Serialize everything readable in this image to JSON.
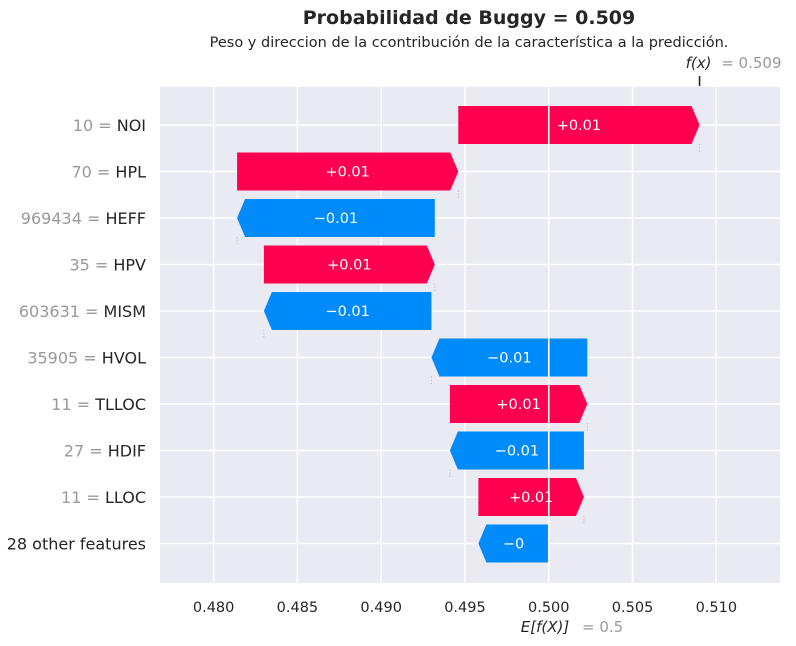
{
  "chart_data": {
    "type": "bar",
    "title": "Probabilidad de Buggy = 0.509",
    "subtitle": "Peso y direccion de la ccontribución de la característica a la predicción.",
    "base_value": 0.5,
    "base_value_label": "E[f(X)]",
    "base_value_text": "= 0.5",
    "prediction": 0.509,
    "prediction_label": "f(x)",
    "prediction_text": "= 0.509",
    "xlim": [
      0.4768,
      0.5138
    ],
    "xticks": [
      0.48,
      0.485,
      0.49,
      0.495,
      0.5,
      0.505,
      0.51
    ],
    "xtick_labels": [
      "0.480",
      "0.485",
      "0.490",
      "0.495",
      "0.500",
      "0.505",
      "0.510"
    ],
    "grid": true,
    "features": [
      {
        "value": "10",
        "name": "NOI",
        "start": 0.4946,
        "end": 0.509,
        "label": "+0.01"
      },
      {
        "value": "70",
        "name": "HPL",
        "start": 0.4814,
        "end": 0.4946,
        "label": "+0.01"
      },
      {
        "value": "969434",
        "name": "HEFF",
        "start": 0.4932,
        "end": 0.4814,
        "label": "−0.01"
      },
      {
        "value": "35",
        "name": "HPV",
        "start": 0.483,
        "end": 0.4932,
        "label": "+0.01"
      },
      {
        "value": "603631",
        "name": "MISM",
        "start": 0.493,
        "end": 0.483,
        "label": "−0.01"
      },
      {
        "value": "35905",
        "name": "HVOL",
        "start": 0.5023,
        "end": 0.493,
        "label": "−0.01"
      },
      {
        "value": "11",
        "name": "TLLOC",
        "start": 0.4941,
        "end": 0.5023,
        "label": "+0.01"
      },
      {
        "value": "27",
        "name": "HDIF",
        "start": 0.5021,
        "end": 0.4941,
        "label": "−0.01"
      },
      {
        "value": "11",
        "name": "LLOC",
        "start": 0.4958,
        "end": 0.5021,
        "label": "+0.01"
      },
      {
        "value": "",
        "name": "28 other features",
        "start": 0.5,
        "end": 0.4958,
        "label": "−0"
      }
    ],
    "colors": {
      "positive": "#ff0051",
      "negative": "#008bfb",
      "background": "#eaeaf2",
      "grid": "#ffffff"
    }
  }
}
